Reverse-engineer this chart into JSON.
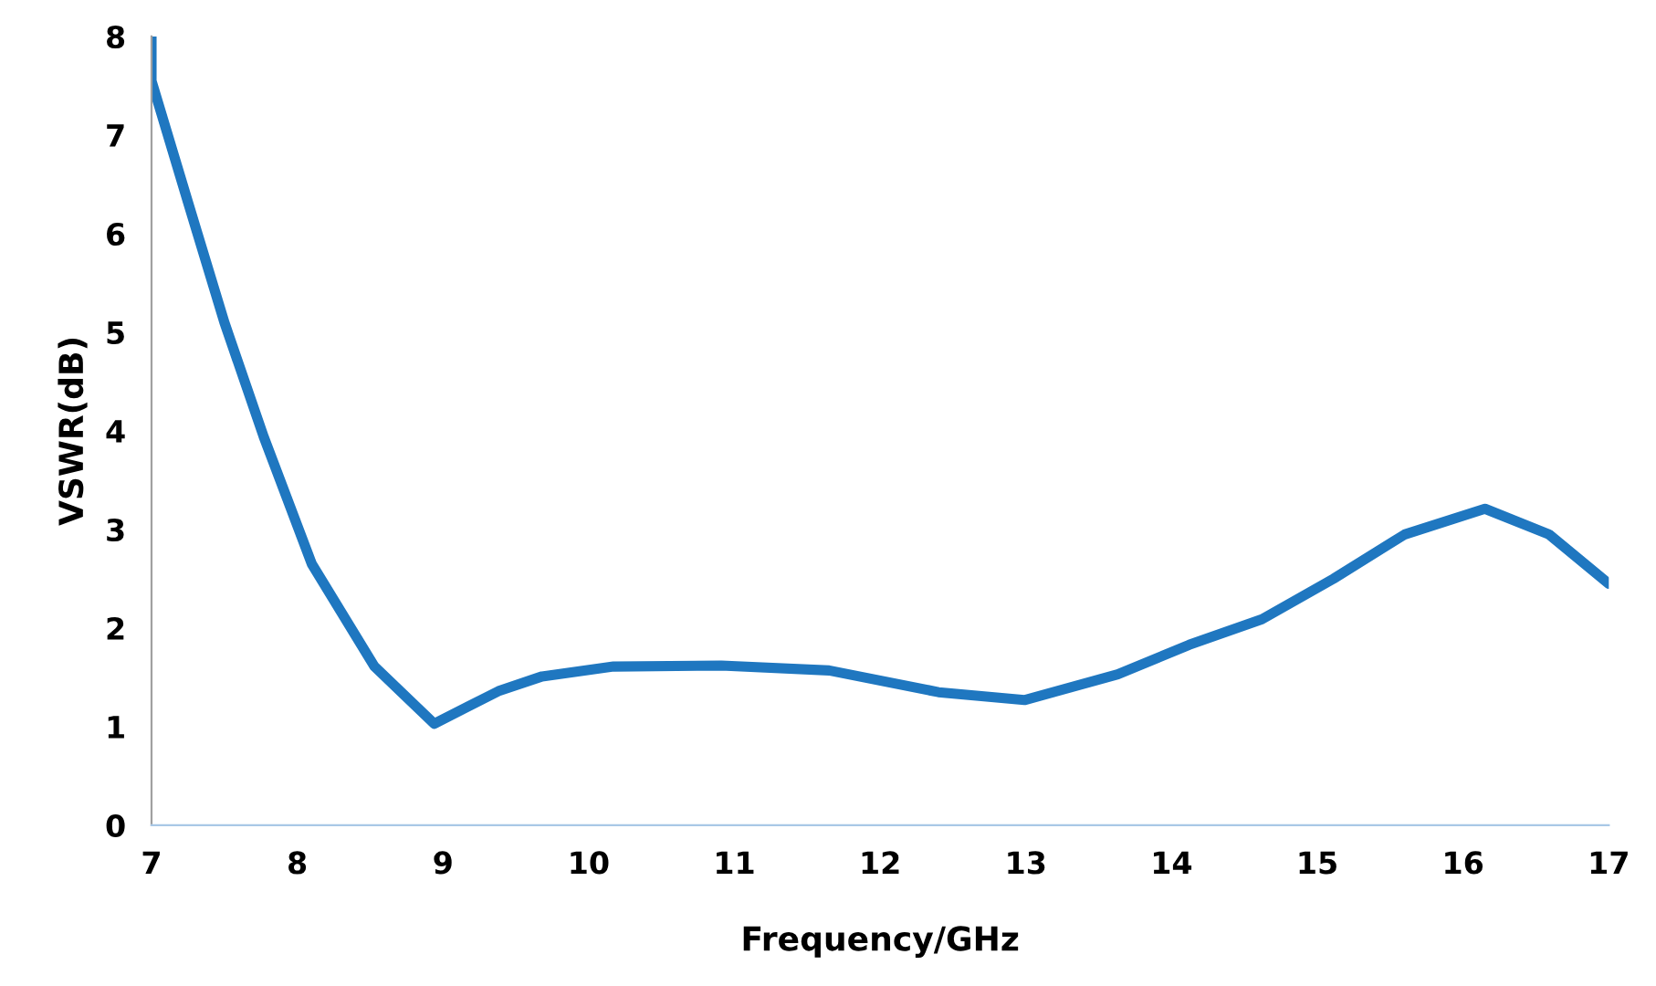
{
  "chart_data": {
    "type": "line",
    "xlabel": "Frequency/GHz",
    "ylabel": "VSWR(dB)",
    "x": [
      7,
      7,
      7.25,
      7.5,
      7.77,
      8.1,
      8.53,
      8.94,
      9.38,
      9.68,
      10.17,
      10.91,
      11.65,
      12.4,
      12.99,
      13.63,
      14.12,
      14.62,
      15.11,
      15.6,
      16.15,
      16.59,
      17
    ],
    "series": [
      {
        "color": "#1f77c0",
        "values": [
          8,
          7.55,
          6.32,
          5.1,
          3.94,
          2.65,
          1.61,
          1.03,
          1.36,
          1.51,
          1.61,
          1.62,
          1.57,
          1.35,
          1.27,
          1.53,
          1.83,
          2.09,
          2.5,
          2.95,
          3.21,
          2.95,
          2.45
        ]
      }
    ],
    "xlim": [
      7,
      17
    ],
    "xticks": [
      7,
      8,
      9,
      10,
      11,
      12,
      13,
      14,
      15,
      16,
      17
    ],
    "ylim": [
      0,
      8
    ],
    "yticks": [
      0,
      1,
      2,
      3,
      4,
      5,
      6,
      7,
      8
    ],
    "grid": false,
    "legend": false,
    "marker": "none",
    "line_style": "solid"
  }
}
